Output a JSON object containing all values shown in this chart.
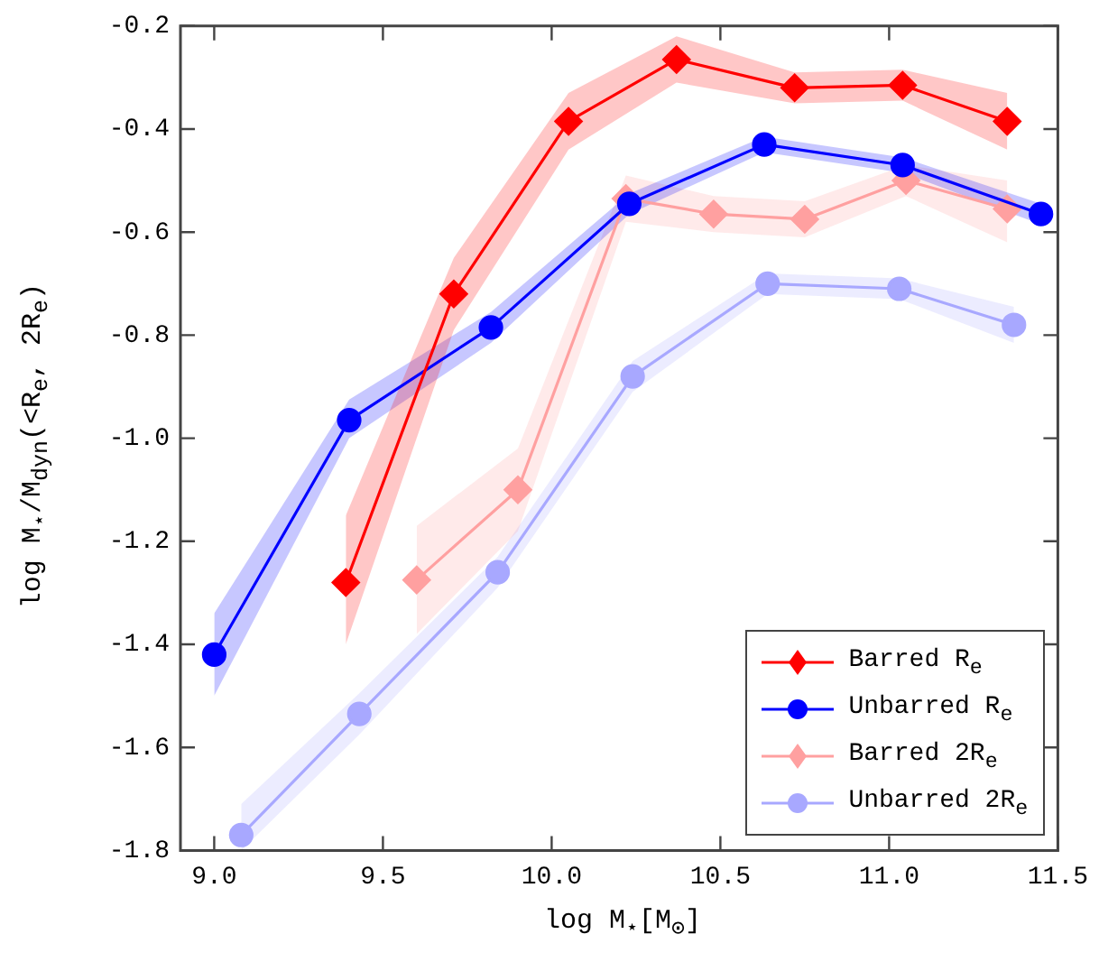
{
  "chart_data": {
    "type": "line",
    "xlabel": "log M$_{⋆}$[M$_{⊙}$]",
    "ylabel": "log M$_{⋆}$/M$_{dyn}$(<R$_{e}$, 2R$_{e}$)",
    "xlim": [
      8.9,
      11.5
    ],
    "ylim": [
      -1.8,
      -0.2
    ],
    "xticks": [
      {
        "value": 9,
        "label": "9.0"
      },
      9.5,
      {
        "value": 10,
        "label": "10.0"
      },
      10.5,
      {
        "value": 11,
        "label": "11.0"
      },
      11.5
    ],
    "yticks": [
      -1.8,
      -1.6,
      -1.4,
      -1.2,
      {
        "value": -1,
        "label": "-1.0"
      },
      -0.8,
      -0.6,
      -0.4,
      -0.2
    ],
    "legend": "bottom right",
    "grid": false,
    "line_style": "solid",
    "series": [
      {
        "name": "Barred R$_{e}$",
        "color": "#ff0000",
        "marker": "diamond",
        "x": [
          9.39,
          9.71,
          10.05,
          10.37,
          10.72,
          11.04,
          11.35
        ],
        "values": [
          -1.28,
          -0.72,
          -0.385,
          -0.265,
          -0.32,
          -0.315,
          -0.385
        ],
        "lower": [
          -1.4,
          -0.79,
          -0.44,
          -0.31,
          -0.35,
          -0.345,
          -0.44
        ],
        "upper": [
          -1.15,
          -0.65,
          -0.33,
          -0.22,
          -0.29,
          -0.285,
          -0.33
        ]
      },
      {
        "name": "Unbarred R$_{e}$",
        "color": "#0000ff",
        "marker": "circle",
        "x": [
          9.0,
          9.4,
          9.82,
          10.23,
          10.63,
          11.04,
          11.45
        ],
        "values": [
          -1.42,
          -0.965,
          -0.785,
          -0.545,
          -0.43,
          -0.47,
          -0.565
        ],
        "lower": [
          -1.5,
          -1.0,
          -0.815,
          -0.565,
          -0.445,
          -0.485,
          -0.585
        ],
        "upper": [
          -1.34,
          -0.925,
          -0.755,
          -0.525,
          -0.415,
          -0.455,
          -0.545
        ]
      },
      {
        "name": "Barred 2R$_{e}$",
        "color": "#ffa0a0",
        "marker": "diamond",
        "x": [
          9.6,
          9.9,
          10.22,
          10.48,
          10.75,
          11.05,
          11.35
        ],
        "values": [
          -1.275,
          -1.1,
          -0.535,
          -0.565,
          -0.575,
          -0.5,
          -0.555
        ],
        "lower": [
          -1.38,
          -1.18,
          -0.58,
          -0.6,
          -0.61,
          -0.53,
          -0.62
        ],
        "upper": [
          -1.17,
          -1.02,
          -0.49,
          -0.53,
          -0.54,
          -0.47,
          -0.5
        ]
      },
      {
        "name": "Unbarred 2R$_{e}$",
        "color": "#a8a8ff",
        "marker": "circle",
        "x": [
          9.08,
          9.43,
          9.84,
          10.24,
          10.64,
          11.03,
          11.37
        ],
        "values": [
          -1.77,
          -1.535,
          -1.26,
          -0.88,
          -0.7,
          -0.71,
          -0.78
        ],
        "lower": [
          -1.8,
          -1.575,
          -1.29,
          -0.91,
          -0.72,
          -0.73,
          -0.815
        ],
        "upper": [
          -1.71,
          -1.495,
          -1.23,
          -0.85,
          -0.68,
          -0.69,
          -0.745
        ]
      }
    ]
  }
}
